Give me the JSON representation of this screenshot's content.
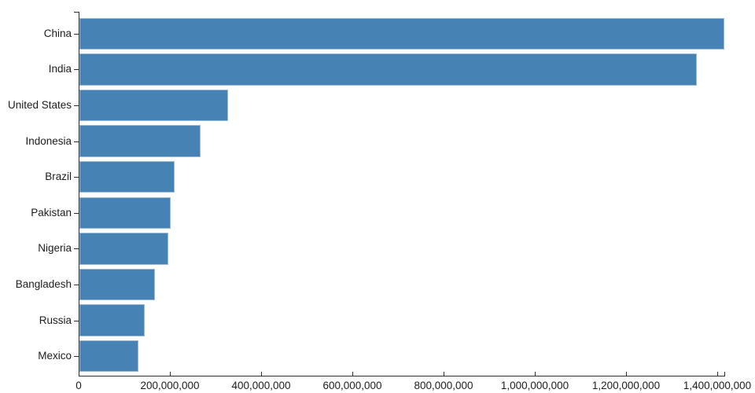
{
  "chart_data": {
    "type": "bar",
    "orientation": "horizontal",
    "title": "",
    "xlabel": "",
    "ylabel": "",
    "grid": false,
    "legend": null,
    "bar_color": "#4682b4",
    "axis_color": "#2e2e2e",
    "text_color": "#1c1c1c",
    "categories": [
      "China",
      "India",
      "United States",
      "Indonesia",
      "Brazil",
      "Pakistan",
      "Nigeria",
      "Bangladesh",
      "Russia",
      "Mexico"
    ],
    "values": [
      1415045928,
      1354051854,
      326766748,
      266794980,
      210867954,
      200813818,
      195875237,
      166368149,
      143964709,
      130759074
    ],
    "xlim": [
      0,
      1415045928
    ],
    "x_tick_values": [
      0,
      200000000,
      400000000,
      600000000,
      800000000,
      1000000000,
      1200000000,
      1400000000
    ],
    "x_tick_labels": [
      "0",
      "200,000,000",
      "400,000,000",
      "600,000,000",
      "800,000,000",
      "1,000,000,000",
      "1,200,000,000",
      "1,400,000,000"
    ]
  }
}
